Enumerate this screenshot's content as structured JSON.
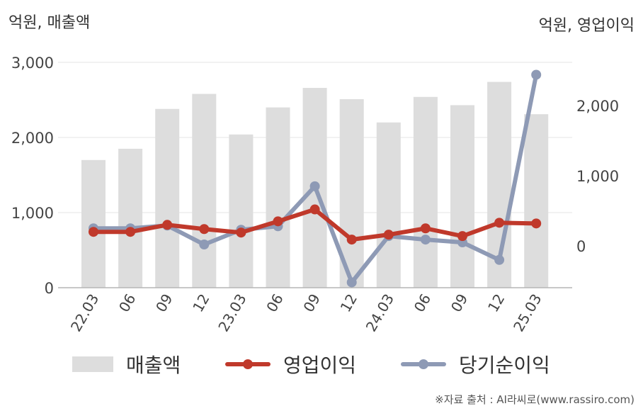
{
  "chart_data": {
    "type": "bar+line",
    "title": "",
    "left_axis_label": "억원, 매출액",
    "right_axis_label": "억원, 영업이익",
    "categories": [
      "22.03",
      "06",
      "09",
      "12",
      "23.03",
      "06",
      "09",
      "12",
      "24.03",
      "06",
      "09",
      "12",
      "25.03"
    ],
    "left_axis": {
      "min": 0,
      "max": 3000,
      "ticks": [
        "0",
        "1,000",
        "2,000",
        "3,000"
      ]
    },
    "right_axis": {
      "min": -600,
      "max": 2800,
      "ticks": [
        "0",
        "1,000",
        "2,000"
      ]
    },
    "series": [
      {
        "name": "매출액",
        "type": "bar",
        "axis": "left",
        "values": [
          1700,
          1850,
          2380,
          2580,
          2040,
          2400,
          2660,
          2510,
          2200,
          2540,
          2430,
          2740,
          2310
        ]
      },
      {
        "name": "영업이익",
        "type": "line",
        "axis": "right",
        "values": [
          200,
          200,
          300,
          240,
          190,
          350,
          520,
          90,
          160,
          250,
          140,
          330,
          320
        ]
      },
      {
        "name": "당기순이익",
        "type": "line",
        "axis": "right",
        "values": [
          250,
          250,
          290,
          20,
          230,
          280,
          850,
          -520,
          140,
          90,
          50,
          -200,
          2440
        ]
      }
    ],
    "grid": true,
    "legend_position": "bottom"
  },
  "colors": {
    "bar": "#dddddd",
    "op_income": "#c0392b",
    "net_income": "#8e9ab5",
    "grid": "#e6e6e6"
  },
  "footer": "※자료 출처 : AI라씨로(www.rassiro.com)"
}
